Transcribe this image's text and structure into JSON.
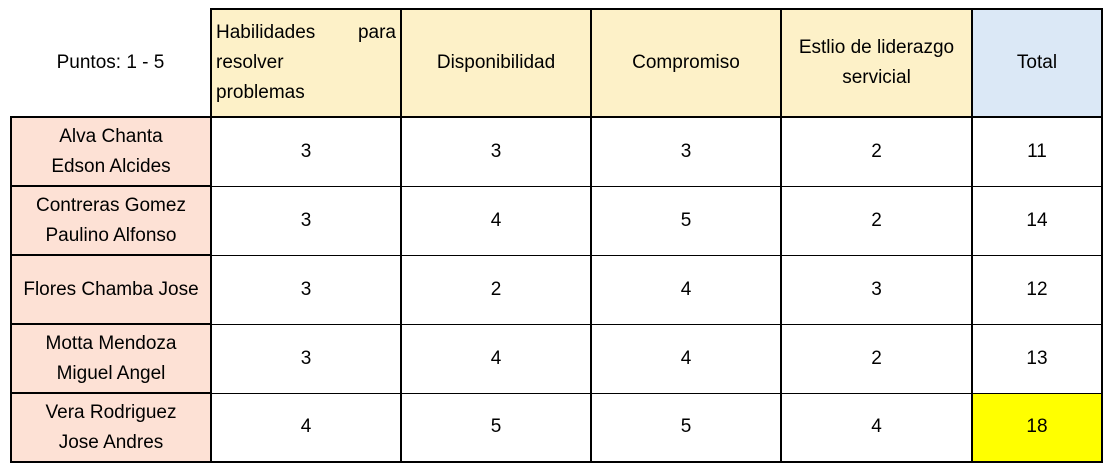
{
  "header": {
    "corner_label": "Puntos: 1 - 5",
    "col1_line1": "Habilidades para",
    "col1_line2": "resolver",
    "col1_line3": "problemas",
    "col2": "Disponibilidad",
    "col3": "Compromiso",
    "col4_line1": "Estlio de liderazgo",
    "col4_line2": "servicial",
    "col5": "Total"
  },
  "rows": [
    {
      "name_line1": "Alva Chanta",
      "name_line2": "Edson Alcides",
      "v1": "3",
      "v2": "3",
      "v3": "3",
      "v4": "2",
      "total": "11"
    },
    {
      "name_line1": "Contreras Gomez",
      "name_line2": "Paulino Alfonso",
      "v1": "3",
      "v2": "4",
      "v3": "5",
      "v4": "2",
      "total": "14"
    },
    {
      "name_line1": "Flores Chamba Jose",
      "name_line2": "",
      "v1": "3",
      "v2": "2",
      "v3": "4",
      "v4": "3",
      "total": "12"
    },
    {
      "name_line1": "Motta Mendoza",
      "name_line2": "Miguel Angel",
      "v1": "3",
      "v2": "4",
      "v3": "4",
      "v4": "2",
      "total": "13"
    },
    {
      "name_line1": "Vera Rodriguez",
      "name_line2": "Jose Andres",
      "v1": "4",
      "v2": "5",
      "v3": "5",
      "v4": "4",
      "total": "18"
    }
  ],
  "colors": {
    "header_bg": "#fdf1c8",
    "total_header_bg": "#dbe8f6",
    "name_bg": "#fde1d5",
    "highlight_bg": "#ffff00"
  }
}
